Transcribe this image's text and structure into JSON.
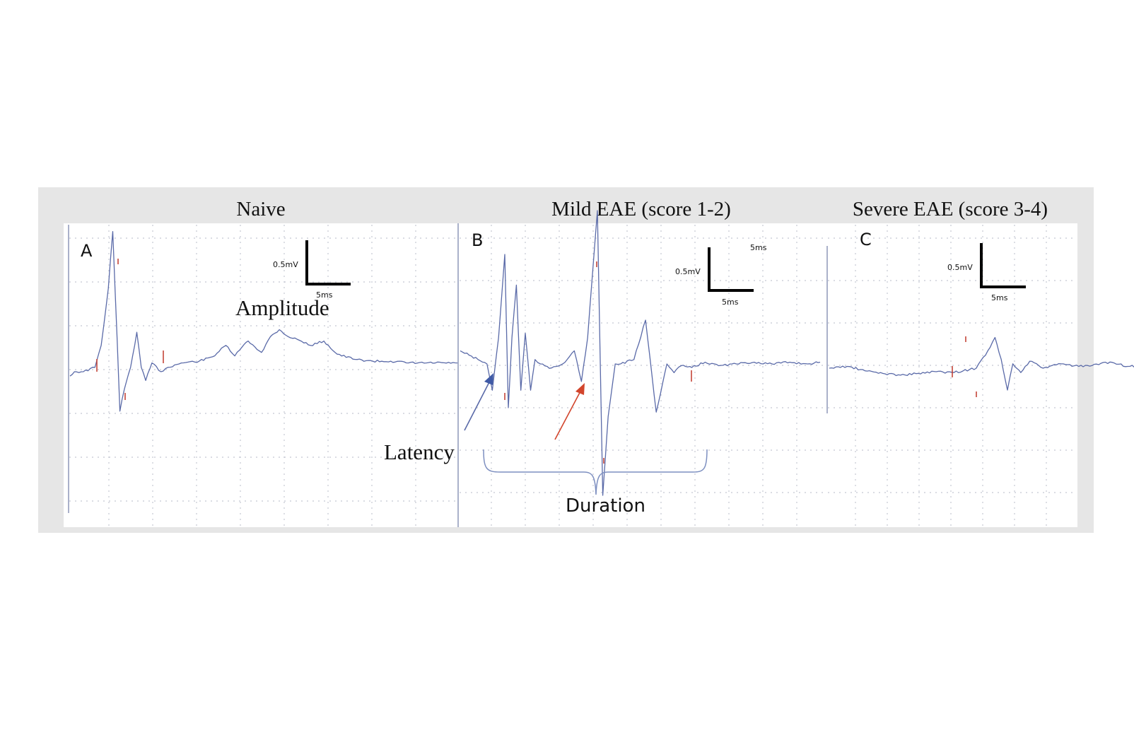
{
  "figure": {
    "panel_titles": [
      "Naive",
      "Mild EAE (score 1-2)",
      "Severe EAE (score 3-4)"
    ]
  },
  "chart_data": [
    {
      "type": "line",
      "panel_letter": "A",
      "title": "Naive",
      "scale_bar": {
        "voltage_label": "0.5mV",
        "time_label": "5ms"
      },
      "annotations": [
        "Amplitude"
      ],
      "x_unit": "ms",
      "y_unit": "mV",
      "series": [
        {
          "x": [
            0,
            0.5,
            1.5,
            2.8,
            3.5,
            4.3,
            4.8,
            5.3,
            5.6,
            6.1,
            6.8,
            7.5,
            8.0,
            8.5,
            9.2,
            10.2,
            11.0,
            12.5,
            14.5,
            16.0,
            17.5,
            18.5,
            19.3,
            20.0,
            21.5,
            22.5,
            23.5,
            24.5,
            25.5,
            27.0,
            28.5,
            30.0,
            32.0,
            34.0,
            36.0,
            38.0,
            40.0,
            43.5
          ],
          "y": [
            -0.05,
            0.0,
            0.0,
            0.05,
            0.3,
            0.95,
            1.6,
            0.35,
            -0.45,
            -0.2,
            0.05,
            0.45,
            0.05,
            -0.1,
            0.1,
            0.0,
            0.05,
            0.1,
            0.12,
            0.17,
            0.3,
            0.18,
            0.28,
            0.35,
            0.22,
            0.4,
            0.48,
            0.4,
            0.37,
            0.3,
            0.35,
            0.2,
            0.14,
            0.12,
            0.12,
            0.1,
            0.1,
            0.1
          ]
        }
      ]
    },
    {
      "type": "line",
      "panel_letter": "B",
      "title": "Mild EAE (score 1-2)",
      "scale_bar": {
        "voltage_label": "0.5mV",
        "time_label": "5ms"
      },
      "annotations": [
        "Latency",
        "Duration"
      ],
      "x_unit": "ms",
      "y_unit": "mV",
      "series": [
        {
          "x": [
            0,
            1.0,
            2.0,
            3.0,
            3.6,
            4.3,
            5.0,
            5.4,
            5.8,
            6.3,
            6.8,
            7.3,
            7.9,
            8.4,
            9.0,
            10.0,
            11.5,
            12.8,
            13.6,
            14.3,
            15.4,
            16.0,
            16.6,
            17.4,
            18.0,
            19.5,
            20.8,
            22.0,
            23.2,
            24.0,
            24.8,
            26.0,
            27.5,
            29.0,
            31.0,
            33.0,
            35.0,
            37.0,
            39.0,
            40.4
          ],
          "y": [
            0.15,
            0.1,
            0.05,
            0.0,
            -0.3,
            0.3,
            1.25,
            -0.5,
            0.3,
            0.9,
            -0.3,
            0.35,
            -0.3,
            0.05,
            0.0,
            -0.05,
            0.0,
            0.15,
            -0.2,
            0.3,
            1.75,
            -1.5,
            -0.6,
            0.0,
            0.0,
            0.05,
            0.5,
            -0.55,
            0.0,
            -0.1,
            -0.02,
            -0.04,
            0.02,
            -0.02,
            0.0,
            0.02,
            0.0,
            0.02,
            0.0,
            0.02
          ]
        }
      ]
    },
    {
      "type": "line",
      "panel_letter": "C",
      "title": "Severe EAE (score 3-4)",
      "scale_bar": {
        "voltage_label": "0.5mV",
        "time_label": "5ms"
      },
      "annotations": [],
      "x_unit": "ms",
      "y_unit": "mV",
      "series": [
        {
          "x": [
            0,
            2.0,
            4.0,
            6.0,
            8.0,
            10.0,
            12.0,
            14.0,
            16.5,
            17.8,
            18.6,
            19.3,
            20.0,
            20.6,
            21.5,
            22.5,
            24.0,
            26.0,
            28.0,
            29.5,
            31.5,
            33.5,
            35.0,
            36.7
          ],
          "y": [
            0.0,
            0.02,
            -0.03,
            -0.06,
            -0.08,
            -0.06,
            -0.04,
            -0.05,
            0.0,
            0.2,
            0.35,
            0.1,
            -0.25,
            0.05,
            -0.05,
            0.08,
            0.0,
            0.05,
            0.02,
            0.03,
            0.07,
            0.02,
            0.02,
            0.02
          ]
        }
      ]
    }
  ]
}
